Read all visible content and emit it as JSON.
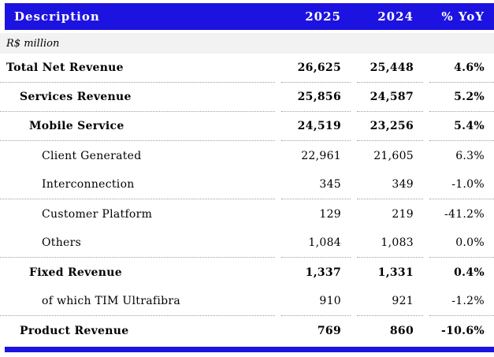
{
  "header": {
    "description": "Description",
    "col_2025": "2025",
    "col_2024": "2024",
    "col_yoy": "% YoY"
  },
  "unit_note": "R$ million",
  "rows": [
    {
      "label": "Total Net Revenue",
      "v2025": "26,625",
      "v2024": "25,448",
      "yoy": "4.6%",
      "level": 0,
      "bold": true,
      "separator_after": true
    },
    {
      "label": "Services Revenue",
      "v2025": "25,856",
      "v2024": "24,587",
      "yoy": "5.2%",
      "level": 1,
      "bold": true,
      "separator_after": true
    },
    {
      "label": "Mobile Service",
      "v2025": "24,519",
      "v2024": "23,256",
      "yoy": "5.4%",
      "level": 2,
      "bold": true,
      "separator_after": true
    },
    {
      "label": "Client Generated",
      "v2025": "22,961",
      "v2024": "21,605",
      "yoy": "6.3%",
      "level": 3,
      "bold": false,
      "separator_after": false
    },
    {
      "label": "Interconnection",
      "v2025": "345",
      "v2024": "349",
      "yoy": "-1.0%",
      "level": 3,
      "bold": false,
      "separator_after": true
    },
    {
      "label": "Customer Platform",
      "v2025": "129",
      "v2024": "219",
      "yoy": "-41.2%",
      "level": 3,
      "bold": false,
      "separator_after": false
    },
    {
      "label": "Others",
      "v2025": "1,084",
      "v2024": "1,083",
      "yoy": "0.0%",
      "level": 3,
      "bold": false,
      "separator_after": true
    },
    {
      "label": "Fixed Revenue",
      "v2025": "1,337",
      "v2024": "1,331",
      "yoy": "0.4%",
      "level": 2,
      "bold": true,
      "separator_after": false
    },
    {
      "label": "of which TIM Ultrafibra",
      "v2025": "910",
      "v2024": "921",
      "yoy": "-1.2%",
      "level": 3,
      "bold": false,
      "separator_after": true
    },
    {
      "label": "Product Revenue",
      "v2025": "769",
      "v2024": "860",
      "yoy": "-10.6%",
      "level": 1,
      "bold": true,
      "separator_after": false
    }
  ],
  "colors": {
    "accent_blue": "#1d13e0",
    "band_gray": "#f2f2f2",
    "separator_dotted": "#9e9e9e",
    "header_text": "#ffffff",
    "body_text": "#000000"
  }
}
